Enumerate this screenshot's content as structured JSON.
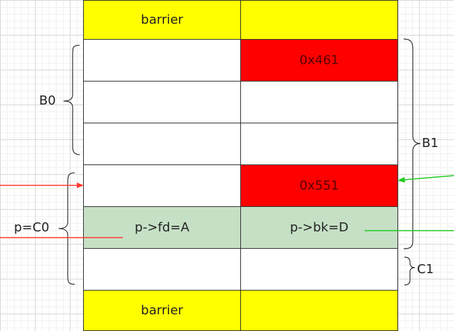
{
  "colors": {
    "barrier": "#ffff00",
    "size_field": "#ff0000",
    "pointer_row": "#c6e0c6",
    "red_arrow": "#ff3b30",
    "green_arrow": "#22cc22"
  },
  "rows": [
    {
      "left": "barrier",
      "right": "",
      "style": "barrier"
    },
    {
      "left": "",
      "right": "0x461",
      "style": "size"
    },
    {
      "left": "",
      "right": "",
      "style": "empty"
    },
    {
      "left": "",
      "right": "",
      "style": "empty"
    },
    {
      "left": "",
      "right": "0x551",
      "style": "size"
    },
    {
      "left": "p->fd=A",
      "right": "p->bk=D",
      "style": "pointer"
    },
    {
      "left": "",
      "right": "",
      "style": "empty"
    },
    {
      "left": "barrier",
      "right": "",
      "style": "barrier"
    }
  ],
  "labels": {
    "b0": "B0",
    "b1": "B1",
    "c0": "p=C0",
    "c1": "C1"
  }
}
